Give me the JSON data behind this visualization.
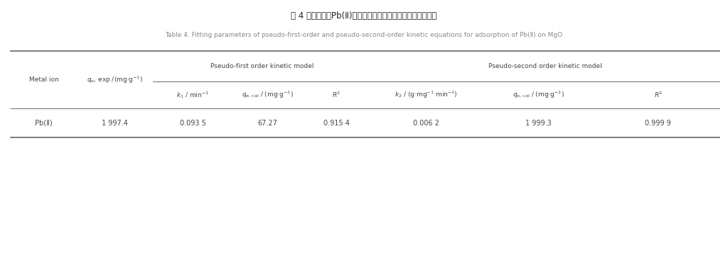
{
  "title_cn": "表 4 氧化镁吸附Pb(Ⅱ)的伪一级和伪二级动力学方程拟合参数",
  "title_en": "Table 4. Fitting parameters of pseudo-first-order and pseudo-second-order kinetic equations for adsorption of Pb(Ⅱ) on MgO",
  "group1_label": "Pseudo-first order kinetic model",
  "group2_label": "Pseudo-second order kinetic model",
  "bg_color": "#ffffff",
  "text_color": "#444444",
  "line_color": "#666666",
  "title_cn_fontsize": 8.5,
  "title_en_fontsize": 6.5,
  "header_fontsize": 6.5,
  "data_fontsize": 7,
  "row_metal": "Pb(Ⅱ)",
  "row_qe_exp": "1 997.4",
  "row_k1": "0.093 5",
  "row_qe_cal1": "67.27",
  "row_R2_1": "0.915 4",
  "row_k2": "0.006 2",
  "row_qe_cal2": "1 999.3",
  "row_R2_2": "0.999 9"
}
